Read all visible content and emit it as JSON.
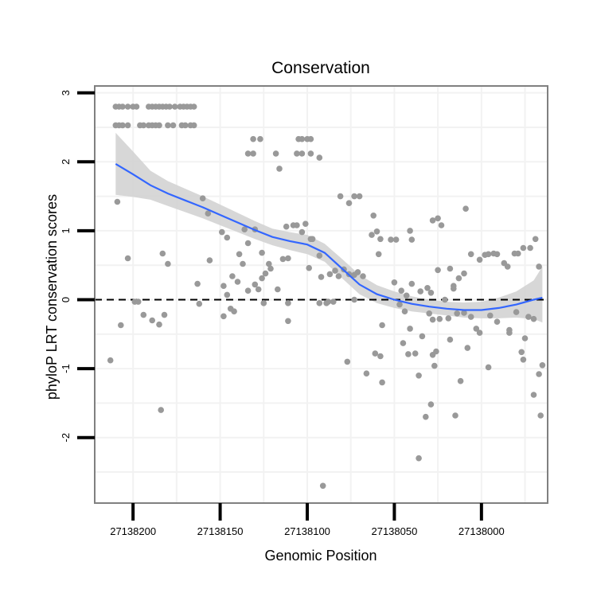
{
  "chart_data": {
    "type": "scatter",
    "title": "Conservation",
    "xlabel": "Genomic Position",
    "ylabel": "phyloP LRT conservation scores",
    "x_reversed": true,
    "xlim": [
      27137962,
      27138222
    ],
    "ylim": [
      -2.95,
      3.1
    ],
    "x_ticks": [
      27138200,
      27138150,
      27138100,
      27138050,
      27138000
    ],
    "x_tick_labels": [
      "27138200",
      "27138150",
      "27138100",
      "27138050",
      "27138000"
    ],
    "y_ticks": [
      -2,
      -1,
      0,
      1,
      2,
      3
    ],
    "y_tick_labels": [
      "-2",
      "-1",
      "0",
      "1",
      "2",
      "3"
    ],
    "reference_line": {
      "y": 0,
      "style": "dashed",
      "color": "#000000"
    },
    "colors": {
      "points": "#999999",
      "smooth": "#3366ff",
      "ribbon": "#d3d3d3",
      "grid": "#f2f2f2",
      "border": "#808080"
    },
    "points": [
      {
        "x": 27138210,
        "y": 2.8
      },
      {
        "x": 27138208,
        "y": 2.8
      },
      {
        "x": 27138206,
        "y": 2.8
      },
      {
        "x": 27138203,
        "y": 2.8
      },
      {
        "x": 27138200,
        "y": 2.8
      },
      {
        "x": 27138198,
        "y": 2.8
      },
      {
        "x": 27138191,
        "y": 2.8
      },
      {
        "x": 27138189,
        "y": 2.8
      },
      {
        "x": 27138187,
        "y": 2.8
      },
      {
        "x": 27138185,
        "y": 2.8
      },
      {
        "x": 27138183,
        "y": 2.8
      },
      {
        "x": 27138181,
        "y": 2.8
      },
      {
        "x": 27138179,
        "y": 2.8
      },
      {
        "x": 27138176,
        "y": 2.8
      },
      {
        "x": 27138173,
        "y": 2.8
      },
      {
        "x": 27138171,
        "y": 2.8
      },
      {
        "x": 27138169,
        "y": 2.8
      },
      {
        "x": 27138167,
        "y": 2.8
      },
      {
        "x": 27138165,
        "y": 2.8
      },
      {
        "x": 27138210,
        "y": 2.53
      },
      {
        "x": 27138208,
        "y": 2.53
      },
      {
        "x": 27138206,
        "y": 2.53
      },
      {
        "x": 27138203,
        "y": 2.53
      },
      {
        "x": 27138196,
        "y": 2.53
      },
      {
        "x": 27138194,
        "y": 2.53
      },
      {
        "x": 27138191,
        "y": 2.53
      },
      {
        "x": 27138189,
        "y": 2.53
      },
      {
        "x": 27138187,
        "y": 2.53
      },
      {
        "x": 27138185,
        "y": 2.53
      },
      {
        "x": 27138180,
        "y": 2.53
      },
      {
        "x": 27138177,
        "y": 2.53
      },
      {
        "x": 27138172,
        "y": 2.53
      },
      {
        "x": 27138170,
        "y": 2.53
      },
      {
        "x": 27138167,
        "y": 2.53
      },
      {
        "x": 27138165,
        "y": 2.53
      },
      {
        "x": 27138131,
        "y": 2.33
      },
      {
        "x": 27138127,
        "y": 2.33
      },
      {
        "x": 27138105,
        "y": 2.33
      },
      {
        "x": 27138103,
        "y": 2.33
      },
      {
        "x": 27138100,
        "y": 2.33
      },
      {
        "x": 27138098,
        "y": 2.33
      },
      {
        "x": 27138134,
        "y": 2.12
      },
      {
        "x": 27138131,
        "y": 2.12
      },
      {
        "x": 27138118,
        "y": 2.12
      },
      {
        "x": 27138106,
        "y": 2.12
      },
      {
        "x": 27138103,
        "y": 2.12
      },
      {
        "x": 27138098,
        "y": 2.12
      },
      {
        "x": 27138093,
        "y": 2.06
      },
      {
        "x": 27138116,
        "y": 1.9
      },
      {
        "x": 27138209,
        "y": 1.42
      },
      {
        "x": 27138160,
        "y": 1.47
      },
      {
        "x": 27138157,
        "y": 1.25
      },
      {
        "x": 27138081,
        "y": 1.5
      },
      {
        "x": 27138073,
        "y": 1.5
      },
      {
        "x": 27138070,
        "y": 1.5
      },
      {
        "x": 27138076,
        "y": 1.4
      },
      {
        "x": 27138062,
        "y": 1.22
      },
      {
        "x": 27138041,
        "y": 1.0
      },
      {
        "x": 27138040,
        "y": 0.87
      },
      {
        "x": 27138028,
        "y": 1.15
      },
      {
        "x": 27138025,
        "y": 1.18
      },
      {
        "x": 27138023,
        "y": 1.08
      },
      {
        "x": 27138009,
        "y": 1.32
      },
      {
        "x": 27138149,
        "y": 0.98
      },
      {
        "x": 27138146,
        "y": 0.9
      },
      {
        "x": 27138136,
        "y": 1.02
      },
      {
        "x": 27138134,
        "y": 0.82
      },
      {
        "x": 27138130,
        "y": 1.02
      },
      {
        "x": 27138112,
        "y": 1.06
      },
      {
        "x": 27138108,
        "y": 1.08
      },
      {
        "x": 27138106,
        "y": 1.08
      },
      {
        "x": 27138103,
        "y": 0.98
      },
      {
        "x": 27138101,
        "y": 1.1
      },
      {
        "x": 27138098,
        "y": 0.88
      },
      {
        "x": 27138063,
        "y": 0.94
      },
      {
        "x": 27138060,
        "y": 0.99
      },
      {
        "x": 27138058,
        "y": 0.88
      },
      {
        "x": 27138059,
        "y": 0.66
      },
      {
        "x": 27138183,
        "y": 0.67
      },
      {
        "x": 27138203,
        "y": 0.6
      },
      {
        "x": 27138180,
        "y": 0.52
      },
      {
        "x": 27138156,
        "y": 0.57
      },
      {
        "x": 27138139,
        "y": 0.66
      },
      {
        "x": 27138137,
        "y": 0.52
      },
      {
        "x": 27138126,
        "y": 0.68
      },
      {
        "x": 27138122,
        "y": 0.52
      },
      {
        "x": 27138114,
        "y": 0.59
      },
      {
        "x": 27138111,
        "y": 0.6
      },
      {
        "x": 27138097,
        "y": 0.88
      },
      {
        "x": 27138093,
        "y": 0.64
      },
      {
        "x": 27138099,
        "y": 0.46
      },
      {
        "x": 27138092,
        "y": 0.33
      },
      {
        "x": 27138087,
        "y": 0.37
      },
      {
        "x": 27138084,
        "y": 0.42
      },
      {
        "x": 27138082,
        "y": 0.34
      },
      {
        "x": 27138079,
        "y": 0.44
      },
      {
        "x": 27138076,
        "y": 0.37
      },
      {
        "x": 27138073,
        "y": 0.36
      },
      {
        "x": 27138071,
        "y": 0.4
      },
      {
        "x": 27138068,
        "y": 0.34
      },
      {
        "x": 27138052,
        "y": 0.87
      },
      {
        "x": 27138049,
        "y": 0.87
      },
      {
        "x": 27138025,
        "y": 0.43
      },
      {
        "x": 27138018,
        "y": 0.45
      },
      {
        "x": 27138013,
        "y": 0.31
      },
      {
        "x": 27138010,
        "y": 0.38
      },
      {
        "x": 27138006,
        "y": 0.66
      },
      {
        "x": 27138001,
        "y": 0.58
      },
      {
        "x": 27137998,
        "y": 0.65
      },
      {
        "x": 27137996,
        "y": 0.66
      },
      {
        "x": 27137993,
        "y": 0.67
      },
      {
        "x": 27137991,
        "y": 0.66
      },
      {
        "x": 27137987,
        "y": 0.53
      },
      {
        "x": 27137985,
        "y": 0.48
      },
      {
        "x": 27137981,
        "y": 0.67
      },
      {
        "x": 27137979,
        "y": 0.67
      },
      {
        "x": 27137976,
        "y": 0.75
      },
      {
        "x": 27137972,
        "y": 0.75
      },
      {
        "x": 27137969,
        "y": 0.88
      },
      {
        "x": 27137967,
        "y": 0.48
      },
      {
        "x": 27138163,
        "y": 0.23
      },
      {
        "x": 27138148,
        "y": 0.2
      },
      {
        "x": 27138143,
        "y": 0.34
      },
      {
        "x": 27138140,
        "y": 0.26
      },
      {
        "x": 27138134,
        "y": 0.13
      },
      {
        "x": 27138128,
        "y": 0.15
      },
      {
        "x": 27138126,
        "y": 0.31
      },
      {
        "x": 27138124,
        "y": 0.38
      },
      {
        "x": 27138121,
        "y": 0.45
      },
      {
        "x": 27138117,
        "y": 0.15
      },
      {
        "x": 27138130,
        "y": 0.22
      },
      {
        "x": 27138146,
        "y": 0.07
      },
      {
        "x": 27138050,
        "y": 0.25
      },
      {
        "x": 27138046,
        "y": 0.13
      },
      {
        "x": 27138043,
        "y": 0.06
      },
      {
        "x": 27138040,
        "y": 0.23
      },
      {
        "x": 27138035,
        "y": 0.12
      },
      {
        "x": 27138031,
        "y": 0.17
      },
      {
        "x": 27138029,
        "y": 0.1
      },
      {
        "x": 27138021,
        "y": 0.0
      },
      {
        "x": 27138016,
        "y": 0.16
      },
      {
        "x": 27138016,
        "y": 0.2
      },
      {
        "x": 27138199,
        "y": -0.03
      },
      {
        "x": 27138197,
        "y": -0.03
      },
      {
        "x": 27138162,
        "y": -0.06
      },
      {
        "x": 27138144,
        "y": -0.13
      },
      {
        "x": 27138142,
        "y": -0.17
      },
      {
        "x": 27138125,
        "y": -0.05
      },
      {
        "x": 27138111,
        "y": -0.05
      },
      {
        "x": 27138093,
        "y": -0.05
      },
      {
        "x": 27138089,
        "y": -0.05
      },
      {
        "x": 27138088,
        "y": -0.03
      },
      {
        "x": 27138085,
        "y": -0.03
      },
      {
        "x": 27138073,
        "y": 0.0
      },
      {
        "x": 27138047,
        "y": -0.07
      },
      {
        "x": 27138044,
        "y": -0.17
      },
      {
        "x": 27138030,
        "y": -0.2
      },
      {
        "x": 27138028,
        "y": -0.29
      },
      {
        "x": 27138024,
        "y": -0.28
      },
      {
        "x": 27138019,
        "y": -0.27
      },
      {
        "x": 27138014,
        "y": -0.2
      },
      {
        "x": 27138010,
        "y": -0.19
      },
      {
        "x": 27138006,
        "y": -0.25
      },
      {
        "x": 27138003,
        "y": -0.42
      },
      {
        "x": 27137995,
        "y": -0.23
      },
      {
        "x": 27137991,
        "y": -0.32
      },
      {
        "x": 27137984,
        "y": -0.48
      },
      {
        "x": 27137980,
        "y": -0.18
      },
      {
        "x": 27137973,
        "y": -0.25
      },
      {
        "x": 27137970,
        "y": -0.28
      },
      {
        "x": 27138207,
        "y": -0.37
      },
      {
        "x": 27138194,
        "y": -0.22
      },
      {
        "x": 27138189,
        "y": -0.3
      },
      {
        "x": 27138185,
        "y": -0.36
      },
      {
        "x": 27138182,
        "y": -0.22
      },
      {
        "x": 27138148,
        "y": -0.24
      },
      {
        "x": 27138111,
        "y": -0.31
      },
      {
        "x": 27138057,
        "y": -0.37
      },
      {
        "x": 27138041,
        "y": -0.42
      },
      {
        "x": 27138034,
        "y": -0.53
      },
      {
        "x": 27138026,
        "y": -0.75
      },
      {
        "x": 27138018,
        "y": -0.58
      },
      {
        "x": 27138008,
        "y": -0.7
      },
      {
        "x": 27138001,
        "y": -0.48
      },
      {
        "x": 27137984,
        "y": -0.44
      },
      {
        "x": 27137975,
        "y": -0.56
      },
      {
        "x": 27138213,
        "y": -0.88
      },
      {
        "x": 27138077,
        "y": -0.9
      },
      {
        "x": 27138061,
        "y": -0.78
      },
      {
        "x": 27138058,
        "y": -0.82
      },
      {
        "x": 27138045,
        "y": -0.63
      },
      {
        "x": 27138042,
        "y": -0.79
      },
      {
        "x": 27138038,
        "y": -0.78
      },
      {
        "x": 27138036,
        "y": -1.1
      },
      {
        "x": 27138028,
        "y": -0.8
      },
      {
        "x": 27138027,
        "y": -0.96
      },
      {
        "x": 27138066,
        "y": -1.07
      },
      {
        "x": 27138057,
        "y": -1.2
      },
      {
        "x": 27138012,
        "y": -1.18
      },
      {
        "x": 27137996,
        "y": -0.98
      },
      {
        "x": 27137977,
        "y": -0.76
      },
      {
        "x": 27137976,
        "y": -0.87
      },
      {
        "x": 27137967,
        "y": -1.08
      },
      {
        "x": 27137965,
        "y": -0.95
      },
      {
        "x": 27137970,
        "y": -1.38
      },
      {
        "x": 27137966,
        "y": -1.68
      },
      {
        "x": 27138032,
        "y": -1.7
      },
      {
        "x": 27138029,
        "y": -1.52
      },
      {
        "x": 27138015,
        "y": -1.68
      },
      {
        "x": 27138184,
        "y": -1.6
      },
      {
        "x": 27138036,
        "y": -2.3
      },
      {
        "x": 27138091,
        "y": -2.7
      }
    ],
    "smooth": [
      {
        "x": 27138210,
        "y": 1.97
      },
      {
        "x": 27138200,
        "y": 1.82
      },
      {
        "x": 27138190,
        "y": 1.66
      },
      {
        "x": 27138180,
        "y": 1.54
      },
      {
        "x": 27138170,
        "y": 1.44
      },
      {
        "x": 27138160,
        "y": 1.34
      },
      {
        "x": 27138150,
        "y": 1.23
      },
      {
        "x": 27138140,
        "y": 1.12
      },
      {
        "x": 27138130,
        "y": 1.01
      },
      {
        "x": 27138120,
        "y": 0.91
      },
      {
        "x": 27138110,
        "y": 0.85
      },
      {
        "x": 27138100,
        "y": 0.8
      },
      {
        "x": 27138090,
        "y": 0.68
      },
      {
        "x": 27138080,
        "y": 0.45
      },
      {
        "x": 27138070,
        "y": 0.22
      },
      {
        "x": 27138060,
        "y": 0.08
      },
      {
        "x": 27138050,
        "y": 0.0
      },
      {
        "x": 27138040,
        "y": -0.06
      },
      {
        "x": 27138030,
        "y": -0.1
      },
      {
        "x": 27138020,
        "y": -0.13
      },
      {
        "x": 27138010,
        "y": -0.15
      },
      {
        "x": 27138000,
        "y": -0.15
      },
      {
        "x": 27137990,
        "y": -0.12
      },
      {
        "x": 27137980,
        "y": -0.07
      },
      {
        "x": 27137970,
        "y": 0.0
      },
      {
        "x": 27137965,
        "y": 0.03
      }
    ],
    "band_lower": [
      1.52,
      1.49,
      1.45,
      1.36,
      1.27,
      1.18,
      1.08,
      0.98,
      0.88,
      0.79,
      0.72,
      0.66,
      0.55,
      0.31,
      0.08,
      -0.05,
      -0.12,
      -0.17,
      -0.2,
      -0.23,
      -0.26,
      -0.27,
      -0.27,
      -0.26,
      -0.28,
      -0.33
    ],
    "band_upper": [
      2.42,
      2.15,
      1.87,
      1.72,
      1.61,
      1.5,
      1.38,
      1.26,
      1.14,
      1.03,
      0.98,
      0.94,
      0.81,
      0.59,
      0.36,
      0.21,
      0.12,
      0.05,
      0.0,
      -0.03,
      -0.04,
      -0.03,
      0.03,
      0.12,
      0.28,
      0.48
    ]
  }
}
